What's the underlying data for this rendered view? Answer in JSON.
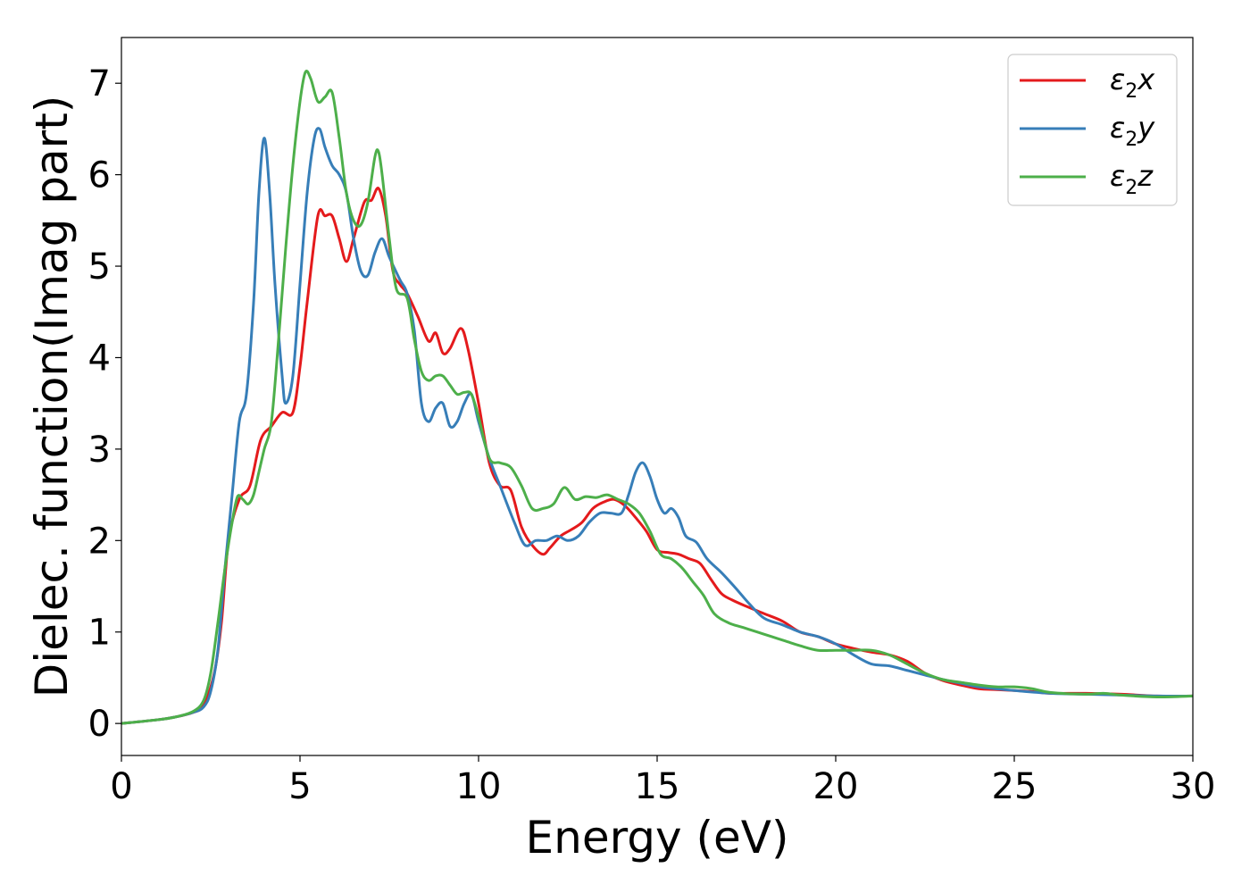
{
  "chart_data": {
    "type": "line",
    "xlabel": "Energy (eV)",
    "ylabel": "Dielec. function(Imag part)",
    "xlim": [
      0,
      30
    ],
    "ylim": [
      -0.35,
      7.5
    ],
    "xticks": [
      0,
      5,
      10,
      15,
      20,
      25,
      30
    ],
    "yticks": [
      0,
      1,
      2,
      3,
      4,
      5,
      6,
      7
    ],
    "grid": false,
    "legend_position": "top-right",
    "series": [
      {
        "name": "ε2x",
        "symbol": "ε",
        "sub": "2",
        "axis": "x",
        "color": "#e41a1c",
        "x": [
          0,
          1,
          1.5,
          2,
          2.3,
          2.6,
          2.8,
          3.0,
          3.3,
          3.6,
          3.9,
          4.2,
          4.5,
          4.8,
          5.0,
          5.2,
          5.5,
          5.7,
          5.9,
          6.1,
          6.3,
          6.5,
          6.8,
          7.0,
          7.2,
          7.4,
          7.6,
          7.8,
          8.0,
          8.3,
          8.6,
          8.8,
          9.0,
          9.2,
          9.5,
          9.7,
          10.0,
          10.3,
          10.6,
          10.9,
          11.2,
          11.5,
          11.8,
          12.0,
          12.3,
          12.6,
          12.9,
          13.2,
          13.5,
          13.8,
          14.1,
          14.4,
          14.7,
          15.0,
          15.3,
          15.6,
          15.9,
          16.2,
          16.5,
          16.8,
          17.1,
          17.5,
          18.0,
          18.5,
          19.0,
          19.5,
          20.0,
          20.5,
          21.0,
          21.5,
          22.0,
          22.5,
          23.0,
          23.5,
          24.0,
          24.5,
          25.0,
          25.5,
          26.0,
          27.0,
          28.0,
          29.0,
          30.0
        ],
        "y": [
          0.0,
          0.04,
          0.07,
          0.12,
          0.2,
          0.55,
          1.1,
          2.0,
          2.45,
          2.6,
          3.1,
          3.25,
          3.4,
          3.4,
          3.9,
          4.6,
          5.55,
          5.55,
          5.55,
          5.3,
          5.05,
          5.3,
          5.7,
          5.72,
          5.85,
          5.55,
          4.95,
          4.8,
          4.7,
          4.45,
          4.18,
          4.27,
          4.05,
          4.1,
          4.32,
          4.1,
          3.5,
          2.85,
          2.6,
          2.55,
          2.15,
          1.95,
          1.85,
          1.92,
          2.05,
          2.12,
          2.2,
          2.35,
          2.42,
          2.45,
          2.38,
          2.25,
          2.1,
          1.9,
          1.87,
          1.85,
          1.8,
          1.75,
          1.58,
          1.42,
          1.35,
          1.28,
          1.2,
          1.12,
          1.0,
          0.95,
          0.87,
          0.82,
          0.78,
          0.75,
          0.68,
          0.55,
          0.47,
          0.42,
          0.38,
          0.37,
          0.36,
          0.35,
          0.33,
          0.33,
          0.32,
          0.3,
          0.3
        ]
      },
      {
        "name": "ε2y",
        "symbol": "ε",
        "sub": "2",
        "axis": "y",
        "color": "#377eb8",
        "x": [
          0,
          1,
          1.5,
          2,
          2.3,
          2.5,
          2.7,
          2.9,
          3.1,
          3.3,
          3.5,
          3.7,
          3.85,
          4.0,
          4.15,
          4.3,
          4.5,
          4.6,
          4.8,
          5.0,
          5.2,
          5.4,
          5.55,
          5.7,
          5.9,
          6.1,
          6.3,
          6.5,
          6.7,
          6.9,
          7.1,
          7.3,
          7.5,
          7.8,
          8.0,
          8.2,
          8.4,
          8.6,
          8.8,
          9.0,
          9.2,
          9.4,
          9.6,
          9.8,
          10.0,
          10.3,
          10.6,
          11.0,
          11.3,
          11.6,
          11.9,
          12.2,
          12.5,
          12.8,
          13.1,
          13.4,
          13.7,
          14.0,
          14.2,
          14.4,
          14.6,
          14.8,
          15.0,
          15.2,
          15.4,
          15.6,
          15.8,
          16.1,
          16.4,
          16.8,
          17.2,
          17.6,
          18.0,
          18.5,
          19.0,
          19.5,
          20.0,
          20.5,
          21.0,
          21.5,
          22.0,
          22.5,
          23.0,
          23.5,
          24.0,
          25.0,
          26.0,
          27.0,
          28.0,
          29.0,
          30.0
        ],
        "y": [
          0.0,
          0.04,
          0.07,
          0.12,
          0.18,
          0.35,
          0.8,
          1.7,
          2.5,
          3.3,
          3.6,
          4.6,
          5.8,
          6.4,
          5.8,
          4.8,
          3.8,
          3.5,
          3.8,
          4.8,
          5.8,
          6.4,
          6.5,
          6.3,
          6.1,
          6.0,
          5.8,
          5.3,
          4.95,
          4.9,
          5.15,
          5.3,
          5.1,
          4.85,
          4.7,
          4.3,
          3.5,
          3.3,
          3.45,
          3.5,
          3.25,
          3.3,
          3.5,
          3.6,
          3.3,
          2.9,
          2.6,
          2.2,
          1.95,
          2.0,
          2.0,
          2.05,
          2.0,
          2.05,
          2.2,
          2.3,
          2.3,
          2.3,
          2.5,
          2.75,
          2.85,
          2.7,
          2.45,
          2.3,
          2.35,
          2.25,
          2.05,
          1.98,
          1.8,
          1.65,
          1.48,
          1.3,
          1.15,
          1.08,
          1.0,
          0.95,
          0.87,
          0.75,
          0.65,
          0.63,
          0.58,
          0.53,
          0.48,
          0.44,
          0.4,
          0.36,
          0.33,
          0.32,
          0.31,
          0.3,
          0.3
        ]
      },
      {
        "name": "ε2z",
        "symbol": "ε",
        "sub": "2",
        "axis": "z",
        "color": "#4daf4a",
        "x": [
          0,
          1,
          1.5,
          2,
          2.3,
          2.5,
          2.7,
          2.9,
          3.1,
          3.25,
          3.4,
          3.55,
          3.7,
          3.85,
          4.0,
          4.2,
          4.4,
          4.6,
          4.8,
          5.0,
          5.15,
          5.3,
          5.5,
          5.7,
          5.9,
          6.1,
          6.3,
          6.5,
          6.7,
          6.9,
          7.1,
          7.2,
          7.3,
          7.5,
          7.7,
          8.0,
          8.2,
          8.4,
          8.6,
          8.8,
          9.0,
          9.2,
          9.4,
          9.6,
          9.8,
          10.0,
          10.3,
          10.6,
          10.9,
          11.2,
          11.5,
          11.8,
          12.1,
          12.4,
          12.7,
          13.0,
          13.3,
          13.6,
          13.9,
          14.2,
          14.5,
          14.8,
          15.1,
          15.4,
          15.7,
          16.0,
          16.3,
          16.6,
          17.0,
          17.4,
          17.8,
          18.2,
          18.6,
          19.0,
          19.5,
          20.0,
          20.5,
          21.0,
          21.5,
          22.0,
          22.5,
          23.0,
          23.5,
          24.0,
          24.5,
          25.0,
          25.5,
          26.0,
          27.0,
          27.5,
          28.0,
          29.0,
          30.0
        ],
        "y": [
          0.0,
          0.04,
          0.07,
          0.13,
          0.25,
          0.55,
          1.1,
          1.7,
          2.2,
          2.48,
          2.45,
          2.4,
          2.5,
          2.75,
          3.0,
          3.3,
          4.2,
          5.2,
          6.1,
          6.8,
          7.12,
          7.05,
          6.8,
          6.85,
          6.9,
          6.4,
          5.8,
          5.5,
          5.45,
          5.7,
          6.2,
          6.25,
          6.0,
          5.3,
          4.75,
          4.65,
          4.2,
          3.85,
          3.75,
          3.8,
          3.8,
          3.7,
          3.6,
          3.62,
          3.6,
          3.35,
          2.9,
          2.85,
          2.8,
          2.6,
          2.35,
          2.35,
          2.4,
          2.58,
          2.45,
          2.48,
          2.47,
          2.5,
          2.45,
          2.4,
          2.3,
          2.1,
          1.85,
          1.8,
          1.7,
          1.55,
          1.4,
          1.2,
          1.1,
          1.05,
          1.0,
          0.95,
          0.9,
          0.85,
          0.8,
          0.8,
          0.8,
          0.8,
          0.75,
          0.65,
          0.55,
          0.48,
          0.45,
          0.42,
          0.4,
          0.4,
          0.38,
          0.34,
          0.32,
          0.33,
          0.31,
          0.29,
          0.3
        ]
      }
    ]
  }
}
